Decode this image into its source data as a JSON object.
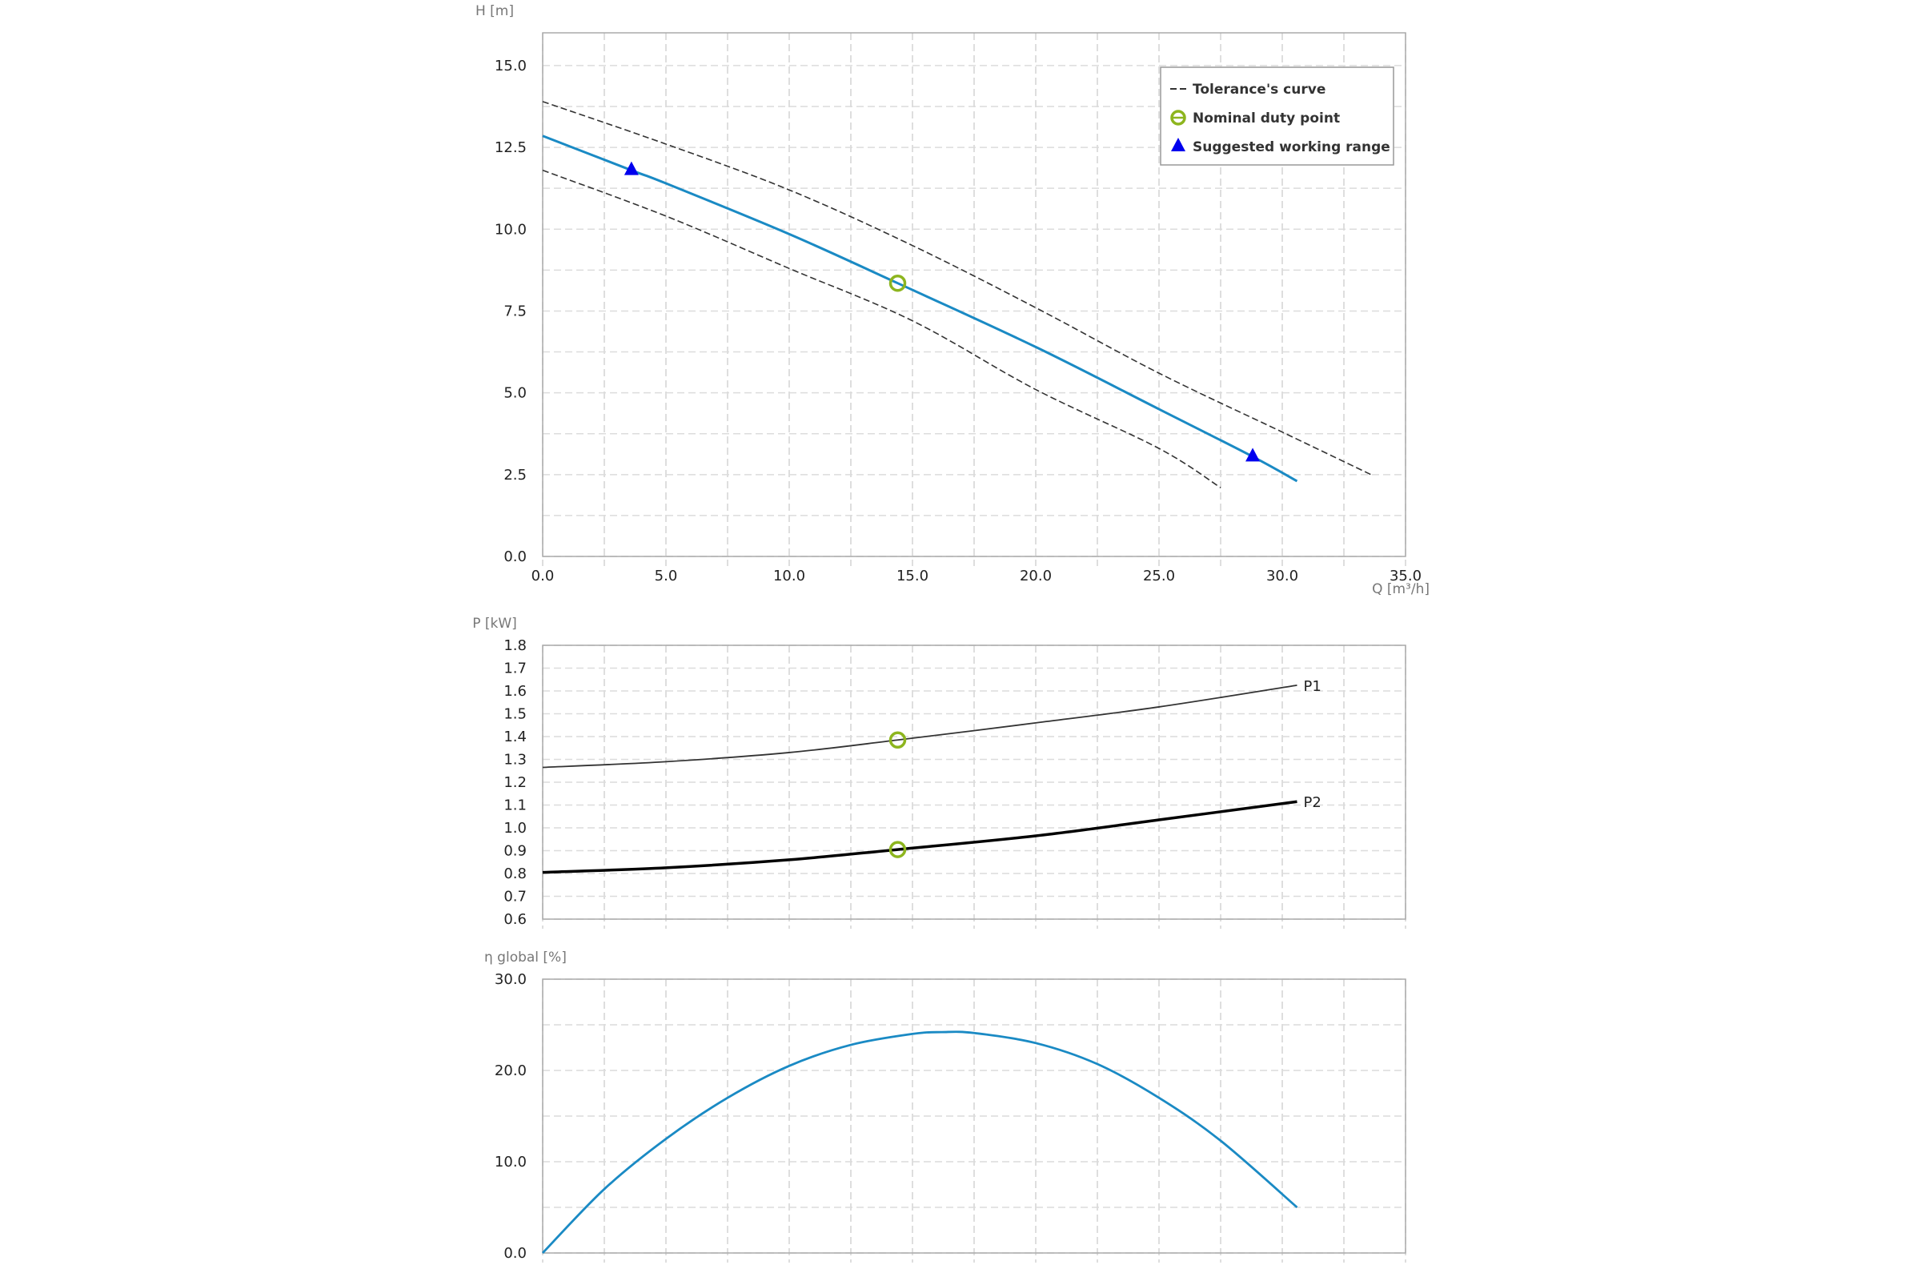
{
  "colors": {
    "pump_curve": "#1a8ac4",
    "tolerance": "#333333",
    "duty_point": "#8db51e",
    "working_range": "#0000ee",
    "p1": "#333333",
    "p2": "#000000",
    "efficiency": "#1a8ac4"
  },
  "chart_data": [
    {
      "type": "line",
      "title": "",
      "ylabel": "H [m]",
      "xlabel": "Q [m³/h]",
      "xlim": [
        0,
        35
      ],
      "ylim": [
        0,
        16
      ],
      "x_ticks": [
        "0.0",
        "5.0",
        "10.0",
        "15.0",
        "20.0",
        "25.0",
        "30.0",
        "35.0"
      ],
      "y_ticks": [
        "0.0",
        "2.5",
        "5.0",
        "7.5",
        "10.0",
        "12.5",
        "15.0"
      ],
      "grid": true,
      "legend": {
        "placement": "top-right",
        "entries": [
          "Tolerance's curve",
          "Nominal duty point",
          "Suggested working range"
        ]
      },
      "series": [
        {
          "name": "H",
          "x": [
            0,
            3.6,
            5,
            10,
            14.4,
            20,
            25,
            28.8,
            30.6
          ],
          "y": [
            12.85,
            11.8,
            11.4,
            9.85,
            8.35,
            6.4,
            4.5,
            3.05,
            2.3
          ]
        },
        {
          "name": "Tolerance upper",
          "x": [
            0,
            5,
            10,
            15,
            20,
            25,
            30,
            33.6
          ],
          "y": [
            13.9,
            12.6,
            11.2,
            9.5,
            7.6,
            5.6,
            3.8,
            2.5
          ]
        },
        {
          "name": "Tolerance lower",
          "x": [
            0,
            5,
            10,
            15,
            20,
            25,
            27.5
          ],
          "y": [
            11.8,
            10.4,
            8.8,
            7.2,
            5.1,
            3.3,
            2.1
          ]
        }
      ],
      "duty_point": {
        "x": 14.4,
        "y": 8.35
      },
      "working_range": [
        {
          "x": 3.6,
          "y": 11.8
        },
        {
          "x": 28.8,
          "y": 3.05
        }
      ]
    },
    {
      "type": "line",
      "ylabel": "P [kW]",
      "xlim": [
        0,
        35
      ],
      "ylim": [
        0.6,
        1.8
      ],
      "y_ticks": [
        "0.6",
        "0.7",
        "0.8",
        "0.9",
        "1.0",
        "1.1",
        "1.2",
        "1.3",
        "1.4",
        "1.5",
        "1.6",
        "1.7",
        "1.8"
      ],
      "grid": true,
      "series": [
        {
          "name": "P1",
          "x": [
            0,
            5,
            10,
            14.4,
            20,
            25,
            30.6
          ],
          "y": [
            1.265,
            1.29,
            1.33,
            1.385,
            1.46,
            1.53,
            1.625
          ]
        },
        {
          "name": "P2",
          "x": [
            0,
            5,
            10,
            14.4,
            20,
            25,
            30.6
          ],
          "y": [
            0.805,
            0.825,
            0.86,
            0.905,
            0.965,
            1.035,
            1.115
          ]
        }
      ],
      "duty_points": [
        {
          "x": 14.4,
          "y": 1.385
        },
        {
          "x": 14.4,
          "y": 0.905
        }
      ]
    },
    {
      "type": "line",
      "ylabel": "η global [%]",
      "xlim": [
        0,
        35
      ],
      "ylim": [
        0,
        30
      ],
      "y_ticks": [
        "0.0",
        "10.0",
        "20.0",
        "30.0"
      ],
      "grid": true,
      "series": [
        {
          "name": "η global",
          "x": [
            0,
            2.5,
            5,
            7.5,
            10,
            12.5,
            15,
            16.2,
            17.5,
            20,
            22.5,
            25,
            27.5,
            30.6
          ],
          "y": [
            0,
            7,
            12.5,
            17,
            20.5,
            22.8,
            24,
            24.2,
            24.1,
            23,
            20.7,
            17,
            12.3,
            5
          ]
        }
      ]
    }
  ]
}
